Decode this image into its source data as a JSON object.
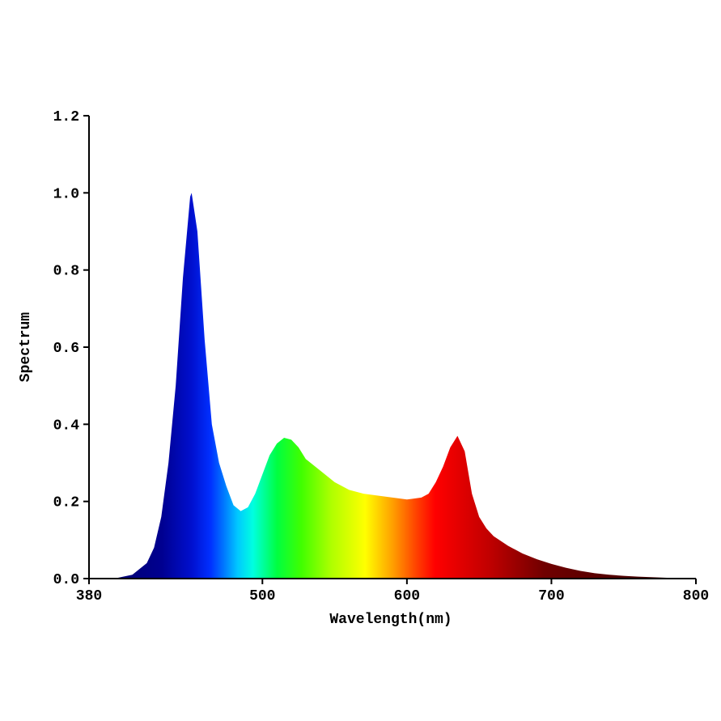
{
  "chart_data": {
    "type": "area",
    "x_label": "Wavelength(nm)",
    "y_label": "Spectrum",
    "x": [
      380,
      390,
      400,
      410,
      420,
      425,
      430,
      435,
      440,
      445,
      450,
      451,
      455,
      460,
      465,
      470,
      475,
      480,
      485,
      490,
      495,
      500,
      505,
      510,
      515,
      520,
      525,
      530,
      540,
      550,
      560,
      570,
      580,
      590,
      600,
      610,
      615,
      620,
      625,
      630,
      635,
      640,
      645,
      650,
      655,
      660,
      670,
      680,
      690,
      700,
      710,
      720,
      730,
      740,
      750,
      760,
      780,
      800
    ],
    "values": [
      0,
      0,
      0.002,
      0.01,
      0.04,
      0.08,
      0.16,
      0.3,
      0.5,
      0.78,
      0.99,
      1.0,
      0.9,
      0.62,
      0.4,
      0.3,
      0.24,
      0.19,
      0.175,
      0.185,
      0.22,
      0.27,
      0.32,
      0.35,
      0.365,
      0.36,
      0.34,
      0.31,
      0.28,
      0.25,
      0.23,
      0.22,
      0.215,
      0.21,
      0.205,
      0.21,
      0.22,
      0.25,
      0.29,
      0.34,
      0.37,
      0.33,
      0.22,
      0.16,
      0.13,
      0.11,
      0.085,
      0.065,
      0.05,
      0.038,
      0.028,
      0.02,
      0.014,
      0.01,
      0.007,
      0.005,
      0.002,
      0.001
    ],
    "xlim": [
      380,
      800
    ],
    "xticks": [
      380,
      500,
      600,
      700,
      800
    ],
    "ylim": [
      0,
      1.2
    ],
    "yticks": [
      {
        "value": 0,
        "label": "0.0"
      },
      0.2,
      0.4,
      0.6,
      0.8,
      {
        "value": 1,
        "label": "1.0"
      },
      1.2
    ],
    "grid": false
  }
}
